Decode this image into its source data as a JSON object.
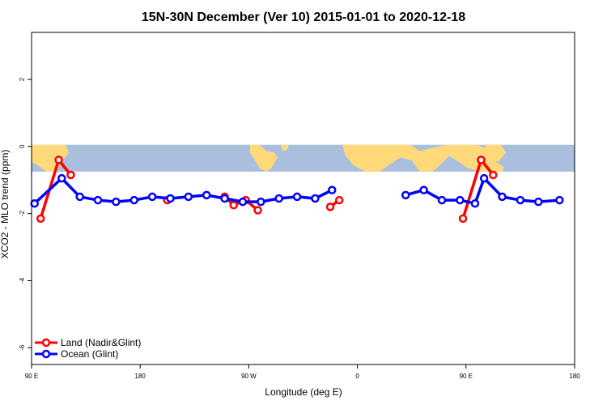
{
  "chart_data": {
    "type": "line",
    "title": "15N-30N December (Ver 10)   2015-01-01 to 2020-12-18",
    "xlabel": "Longitude (deg E)",
    "ylabel": "XCO2 - MLO trend (ppm)",
    "xlim": [
      90,
      540
    ],
    "ylim": [
      -6.5,
      3.4
    ],
    "x_ticks": [
      {
        "value": 90,
        "label": "90 E"
      },
      {
        "value": 180,
        "label": "180"
      },
      {
        "value": 270,
        "label": "90 W"
      },
      {
        "value": 360,
        "label": "0"
      },
      {
        "value": 450,
        "label": "90 E"
      },
      {
        "value": 540,
        "label": "180"
      }
    ],
    "y_ticks": [
      {
        "value": 2,
        "label": "2"
      },
      {
        "value": 0,
        "label": "0"
      },
      {
        "value": -2,
        "label": "-2"
      },
      {
        "value": -4,
        "label": "-4"
      },
      {
        "value": -6,
        "label": "-6"
      }
    ],
    "map_band": {
      "y_top": 0.05,
      "y_bottom": -0.75,
      "ocean_color": "#a9bfdd",
      "land_color": "#ffd97a"
    },
    "legend": {
      "placement": "bottom-left"
    },
    "series": [
      {
        "name": "Land (Nadir&Glint)",
        "color": "#ff0000",
        "segments": [
          [
            [
              97.5,
              -2.15
            ],
            [
              112.5,
              -0.4
            ],
            [
              122.5,
              -0.85
            ]
          ],
          [
            [
              202.5,
              -1.6
            ]
          ],
          [
            [
              250,
              -1.5
            ],
            [
              257.5,
              -1.75
            ],
            [
              267.5,
              -1.6
            ],
            [
              277.5,
              -1.9
            ]
          ],
          [
            [
              337.5,
              -1.8
            ],
            [
              345,
              -1.6
            ]
          ],
          [
            [
              447.5,
              -2.15
            ],
            [
              462.5,
              -0.4
            ],
            [
              472.5,
              -0.85
            ]
          ]
        ]
      },
      {
        "name": "Ocean (Glint)",
        "color": "#0000ff",
        "segments": [
          [
            [
              92.5,
              -1.7
            ],
            [
              115,
              -0.95
            ],
            [
              130,
              -1.5
            ],
            [
              145,
              -1.6
            ],
            [
              160,
              -1.65
            ],
            [
              175,
              -1.6
            ],
            [
              190,
              -1.5
            ],
            [
              205,
              -1.55
            ],
            [
              220,
              -1.5
            ],
            [
              235,
              -1.45
            ],
            [
              250,
              -1.55
            ],
            [
              265,
              -1.65
            ],
            [
              280,
              -1.65
            ],
            [
              295,
              -1.55
            ],
            [
              310,
              -1.5
            ],
            [
              325,
              -1.55
            ],
            [
              339,
              -1.3
            ]
          ],
          [
            [
              400,
              -1.45
            ],
            [
              415,
              -1.3
            ],
            [
              430,
              -1.6
            ],
            [
              445,
              -1.6
            ],
            [
              457.5,
              -1.7
            ],
            [
              465,
              -0.95
            ],
            [
              480,
              -1.5
            ],
            [
              495,
              -1.6
            ],
            [
              510,
              -1.65
            ],
            [
              527.5,
              -1.6
            ]
          ]
        ]
      }
    ]
  }
}
